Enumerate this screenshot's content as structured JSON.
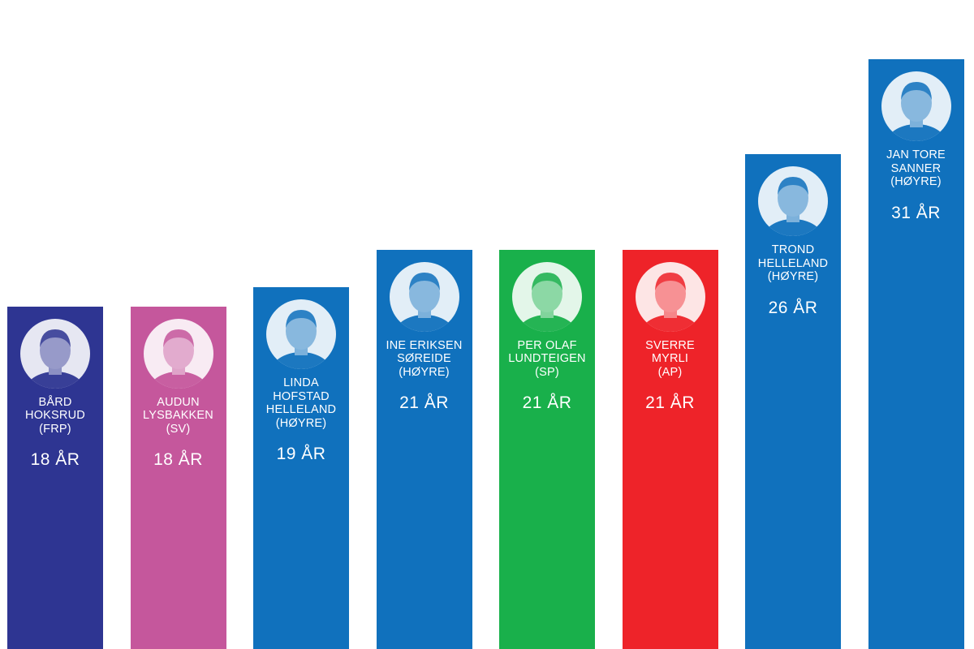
{
  "chart_data": {
    "type": "bar",
    "title": "",
    "xlabel": "",
    "ylabel": "",
    "ylim": [
      0,
      35
    ],
    "grid": false,
    "legend": "none",
    "unit_label": "ÅR",
    "categories": [
      "BÅRD HOKSRUD (FRP)",
      "AUDUN LYSBAKKEN (SV)",
      "LINDA HOFSTAD HELLELAND (HØYRE)",
      "INE ERIKSEN SØREIDE (HØYRE)",
      "PER OLAF LUNDTEIGEN (SP)",
      "SVERRE MYRLI (AP)",
      "TROND HELLELAND (HØYRE)",
      "JAN TORE SANNER (HØYRE)"
    ],
    "values": [
      18,
      18,
      19,
      21,
      21,
      21,
      26,
      31
    ],
    "bars": [
      {
        "name_lines": [
          "BÅRD",
          "HOKSRUD",
          "(FRP)"
        ],
        "value_label": "18 ÅR",
        "value": 18,
        "color": "#2e3592"
      },
      {
        "name_lines": [
          "AUDUN",
          "LYSBAKKEN",
          "(SV)"
        ],
        "value_label": "18 ÅR",
        "value": 18,
        "color": "#c5579c"
      },
      {
        "name_lines": [
          "LINDA",
          "HOFSTAD",
          "HELLELAND",
          "(HØYRE)"
        ],
        "value_label": "19 ÅR",
        "value": 19,
        "color": "#1071bd"
      },
      {
        "name_lines": [
          "INE ERIKSEN",
          "SØREIDE",
          "(HØYRE)"
        ],
        "value_label": "21 ÅR",
        "value": 21,
        "color": "#1071bd"
      },
      {
        "name_lines": [
          "PER OLAF",
          "LUNDTEIGEN",
          "(SP)"
        ],
        "value_label": "21 ÅR",
        "value": 21,
        "color": "#19b04b"
      },
      {
        "name_lines": [
          "SVERRE",
          "MYRLI",
          "(AP)"
        ],
        "value_label": "21 ÅR",
        "value": 21,
        "color": "#ee2329"
      },
      {
        "name_lines": [
          "TROND",
          "HELLELAND",
          "(HØYRE)"
        ],
        "value_label": "26 ÅR",
        "value": 26,
        "color": "#1071bd"
      },
      {
        "name_lines": [
          "JAN TORE",
          "SANNER",
          "(HØYRE)"
        ],
        "value_label": "31 ÅR",
        "value": 31,
        "color": "#1071bd"
      }
    ]
  }
}
